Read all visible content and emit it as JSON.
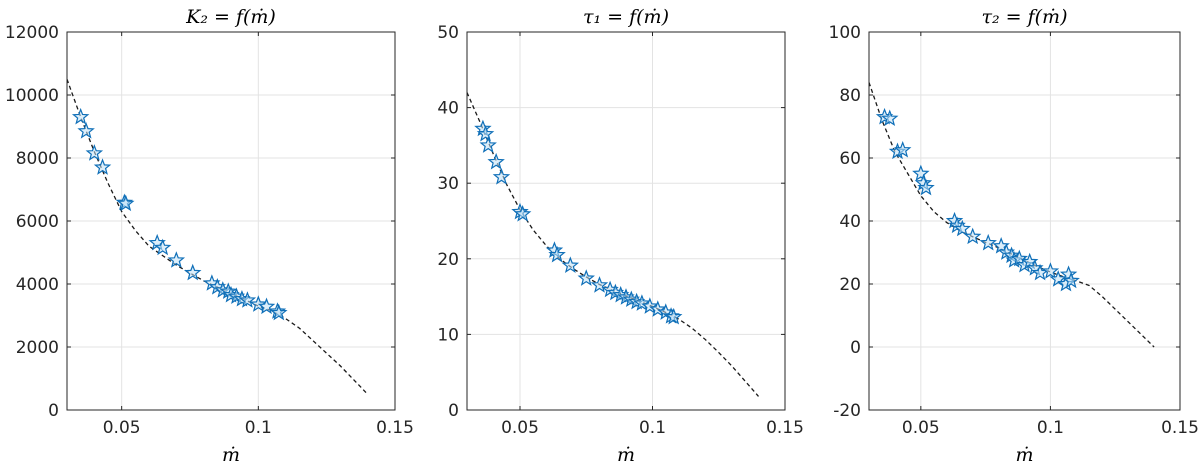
{
  "chart_data": [
    {
      "type": "scatter",
      "title": "K₂ = f(ṁ)",
      "xlabel": "ṁ",
      "ylabel": "",
      "xlim": [
        0.03,
        0.15
      ],
      "ylim": [
        0,
        12000
      ],
      "xticks": [
        0.05,
        0.1,
        0.15
      ],
      "xtick_labels": [
        "0.05",
        "0.1",
        "0.15"
      ],
      "yticks": [
        0,
        2000,
        4000,
        6000,
        8000,
        10000,
        12000
      ],
      "ytick_labels": [
        "0",
        "2000",
        "4000",
        "6000",
        "8000",
        "10000",
        "12000"
      ],
      "grid": true,
      "series": [
        {
          "marker": "star",
          "color": "#0f6fb8",
          "x": [
            0.035,
            0.037,
            0.04,
            0.043,
            0.051,
            0.0515,
            0.063,
            0.065,
            0.07,
            0.076,
            0.083,
            0.085,
            0.087,
            0.089,
            0.09,
            0.092,
            0.094,
            0.096,
            0.1,
            0.103,
            0.107,
            0.1075
          ],
          "y": [
            9300,
            8850,
            8150,
            7700,
            6580,
            6550,
            5300,
            5150,
            4750,
            4350,
            4020,
            3900,
            3800,
            3760,
            3650,
            3600,
            3520,
            3480,
            3350,
            3280,
            3130,
            3080
          ]
        },
        {
          "line": "dashed",
          "color": "#1a1a1a",
          "x": [
            0.03,
            0.035,
            0.04,
            0.045,
            0.05,
            0.055,
            0.06,
            0.065,
            0.07,
            0.075,
            0.08,
            0.085,
            0.09,
            0.095,
            0.1,
            0.105,
            0.11,
            0.115,
            0.12,
            0.125,
            0.13,
            0.135,
            0.14
          ],
          "y": [
            10500,
            9300,
            8200,
            7200,
            6300,
            5700,
            5200,
            4900,
            4600,
            4350,
            4100,
            3900,
            3700,
            3500,
            3300,
            3150,
            2900,
            2600,
            2200,
            1800,
            1400,
            950,
            500
          ]
        }
      ]
    },
    {
      "type": "scatter",
      "title": "τ₁ = f(ṁ)",
      "xlabel": "ṁ",
      "ylabel": "",
      "xlim": [
        0.03,
        0.15
      ],
      "ylim": [
        0,
        50
      ],
      "xticks": [
        0.05,
        0.1,
        0.15
      ],
      "xtick_labels": [
        "0.05",
        "0.1",
        "0.15"
      ],
      "yticks": [
        0,
        10,
        20,
        30,
        40,
        50
      ],
      "ytick_labels": [
        "0",
        "10",
        "20",
        "30",
        "40",
        "50"
      ],
      "grid": true,
      "series": [
        {
          "marker": "star",
          "color": "#0f6fb8",
          "x": [
            0.036,
            0.037,
            0.038,
            0.041,
            0.043,
            0.05,
            0.051,
            0.063,
            0.064,
            0.069,
            0.075,
            0.08,
            0.084,
            0.086,
            0.088,
            0.09,
            0.092,
            0.094,
            0.096,
            0.099,
            0.102,
            0.105,
            0.107,
            0.108
          ],
          "y": [
            37.2,
            36.5,
            35.0,
            32.8,
            30.8,
            26.2,
            25.9,
            21.1,
            20.5,
            19.1,
            17.4,
            16.5,
            15.9,
            15.5,
            15.2,
            14.9,
            14.6,
            14.3,
            14.1,
            13.7,
            13.3,
            12.9,
            12.4,
            12.3
          ]
        },
        {
          "line": "dashed",
          "color": "#1a1a1a",
          "x": [
            0.03,
            0.035,
            0.04,
            0.045,
            0.05,
            0.055,
            0.06,
            0.065,
            0.07,
            0.075,
            0.08,
            0.085,
            0.09,
            0.095,
            0.1,
            0.105,
            0.11,
            0.115,
            0.12,
            0.125,
            0.13,
            0.135,
            0.14
          ],
          "y": [
            42,
            38,
            33.8,
            29.8,
            26.5,
            23.8,
            21.7,
            20.0,
            18.7,
            17.6,
            16.6,
            15.8,
            15.1,
            14.4,
            13.7,
            12.9,
            12.0,
            10.8,
            9.3,
            7.6,
            5.8,
            3.8,
            1.8
          ]
        }
      ]
    },
    {
      "type": "scatter",
      "title": "τ₂ = f(ṁ)",
      "xlabel": "ṁ",
      "ylabel": "",
      "xlim": [
        0.03,
        0.15
      ],
      "ylim": [
        -20,
        100
      ],
      "xticks": [
        0.05,
        0.1,
        0.15
      ],
      "xtick_labels": [
        "0.05",
        "0.1",
        "0.15"
      ],
      "yticks": [
        -20,
        0,
        20,
        40,
        60,
        80,
        100
      ],
      "ytick_labels": [
        "-20",
        "0",
        "20",
        "40",
        "60",
        "80",
        "100"
      ],
      "grid": true,
      "series": [
        {
          "marker": "star",
          "color": "#0f6fb8",
          "x": [
            0.036,
            0.038,
            0.041,
            0.043,
            0.05,
            0.051,
            0.052,
            0.063,
            0.064,
            0.066,
            0.07,
            0.076,
            0.081,
            0.083,
            0.085,
            0.086,
            0.088,
            0.09,
            0.092,
            0.094,
            0.096,
            0.1,
            0.103,
            0.106,
            0.107,
            0.108
          ],
          "y": [
            73,
            72.5,
            62,
            62.5,
            55,
            52,
            50.5,
            40,
            38.5,
            37.5,
            35,
            33,
            32,
            30,
            29,
            27.5,
            28,
            26,
            27,
            25,
            23.5,
            24,
            21.5,
            20,
            23,
            21
          ]
        },
        {
          "line": "dashed",
          "color": "#1a1a1a",
          "x": [
            0.03,
            0.035,
            0.04,
            0.045,
            0.05,
            0.055,
            0.06,
            0.065,
            0.07,
            0.075,
            0.08,
            0.085,
            0.09,
            0.095,
            0.1,
            0.105,
            0.11,
            0.115,
            0.12,
            0.125,
            0.13,
            0.135,
            0.14
          ],
          "y": [
            84,
            72,
            62,
            55,
            48,
            43,
            39.5,
            37,
            35,
            33.2,
            31.5,
            29.5,
            27.5,
            25.5,
            23.8,
            22.3,
            21,
            19.5,
            16,
            12,
            8,
            4,
            0
          ]
        }
      ]
    }
  ]
}
